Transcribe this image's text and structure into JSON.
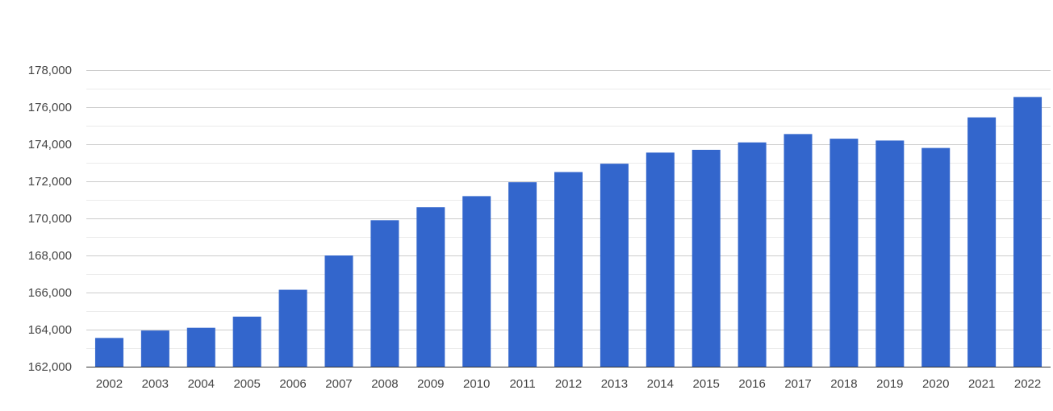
{
  "chart_data": {
    "type": "bar",
    "title": "",
    "xlabel": "",
    "ylabel": "",
    "categories": [
      "2002",
      "2003",
      "2004",
      "2005",
      "2006",
      "2007",
      "2008",
      "2009",
      "2010",
      "2011",
      "2012",
      "2013",
      "2014",
      "2015",
      "2016",
      "2017",
      "2018",
      "2019",
      "2020",
      "2021",
      "2022"
    ],
    "values": [
      163550,
      163950,
      164100,
      164700,
      166150,
      168000,
      169900,
      170600,
      171200,
      171950,
      172500,
      172950,
      173550,
      173700,
      174100,
      174550,
      174300,
      174200,
      173800,
      175450,
      176550
    ],
    "ylim": [
      162000,
      178000
    ],
    "yticks": [
      162000,
      164000,
      166000,
      168000,
      170000,
      172000,
      174000,
      176000,
      178000
    ],
    "ytick_labels": [
      "162,000",
      "164,000",
      "166,000",
      "168,000",
      "170,000",
      "172,000",
      "174,000",
      "176,000",
      "178,000"
    ],
    "grid": true,
    "minor_grid": true,
    "legend": "none",
    "bar_color": "#3366cc"
  }
}
